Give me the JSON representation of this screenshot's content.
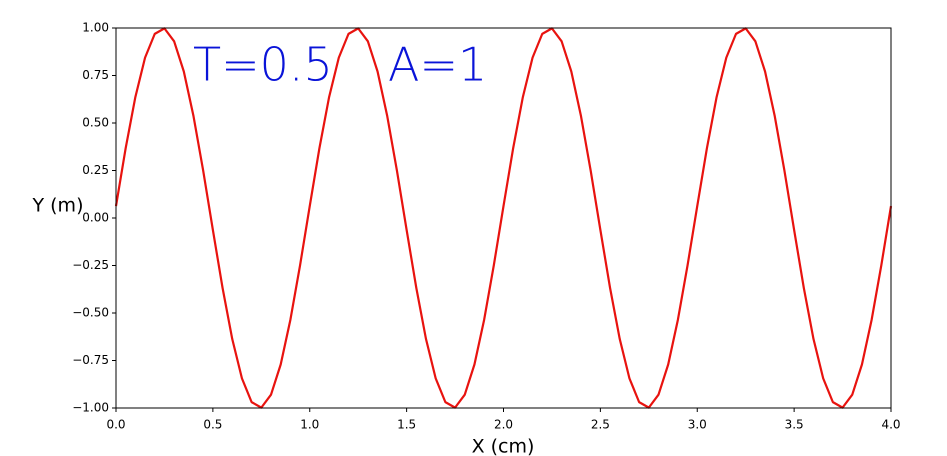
{
  "chart_data": {
    "type": "line",
    "xlabel": "X (cm)",
    "ylabel": "Y (m)",
    "annotations": [
      "T=0.5",
      "A=1"
    ],
    "x": [
      0,
      0.05,
      0.1,
      0.15,
      0.2,
      0.25,
      0.3,
      0.35,
      0.4,
      0.45,
      0.5,
      0.55,
      0.6,
      0.65,
      0.7,
      0.75,
      0.8,
      0.85,
      0.9,
      0.95,
      1,
      1.05,
      1.1,
      1.15,
      1.2,
      1.25,
      1.3,
      1.35,
      1.4,
      1.45,
      1.5,
      1.55,
      1.6,
      1.65,
      1.7,
      1.75,
      1.8,
      1.85,
      1.9,
      1.95,
      2,
      2.05,
      2.1,
      2.15,
      2.2,
      2.25,
      2.3,
      2.35,
      2.4,
      2.45,
      2.5,
      2.55,
      2.6,
      2.65,
      2.7,
      2.75,
      2.8,
      2.85,
      2.9,
      2.95,
      3,
      3.05,
      3.1,
      3.15,
      3.2,
      3.25,
      3.3,
      3.35,
      3.4,
      3.45,
      3.5,
      3.55,
      3.6,
      3.65,
      3.7,
      3.75,
      3.8,
      3.85,
      3.9,
      3.95,
      4
    ],
    "series": [
      {
        "color": "#e8130f",
        "values": [
          0.063,
          0.368,
          0.637,
          0.844,
          0.969,
          0.998,
          0.93,
          0.771,
          0.536,
          0.249,
          -0.063,
          -0.368,
          -0.637,
          -0.844,
          -0.969,
          -0.998,
          -0.93,
          -0.771,
          -0.536,
          -0.249,
          0.063,
          0.368,
          0.637,
          0.844,
          0.969,
          0.998,
          0.93,
          0.771,
          0.536,
          0.249,
          -0.063,
          -0.368,
          -0.637,
          -0.844,
          -0.969,
          -0.998,
          -0.93,
          -0.771,
          -0.536,
          -0.249,
          0.063,
          0.368,
          0.637,
          0.844,
          0.969,
          0.998,
          0.93,
          0.771,
          0.536,
          0.249,
          -0.063,
          -0.368,
          -0.637,
          -0.844,
          -0.969,
          -0.998,
          -0.93,
          -0.771,
          -0.536,
          -0.249,
          0.063,
          0.368,
          0.637,
          0.844,
          0.969,
          0.998,
          0.93,
          0.771,
          0.536,
          0.249,
          -0.063,
          -0.368,
          -0.637,
          -0.844,
          -0.969,
          -0.998,
          -0.93,
          -0.771,
          -0.536,
          -0.249,
          0.063
        ]
      }
    ],
    "annotation_color": "#0a14d8",
    "xlim": [
      0,
      4
    ],
    "xticks": [
      {
        "value": 0,
        "label": "0.0"
      },
      0.5,
      {
        "value": 1,
        "label": "1.0"
      },
      1.5,
      {
        "value": 2,
        "label": "2.0"
      },
      2.5,
      {
        "value": 3,
        "label": "3.0"
      },
      3.5,
      {
        "value": 4,
        "label": "4.0"
      }
    ],
    "ylim": [
      -1,
      1
    ],
    "yticks": [
      {
        "value": -1,
        "label": "−1.00"
      },
      {
        "value": -0.75,
        "label": "−0.75"
      },
      {
        "value": -0.5,
        "label": "−0.50"
      },
      {
        "value": -0.25,
        "label": "−0.25"
      },
      {
        "value": 0,
        "label": "0.00"
      },
      0.25,
      {
        "value": 0.5,
        "label": "0.50"
      },
      0.75,
      {
        "value": 1,
        "label": "1.00"
      }
    ],
    "grid": false
  }
}
